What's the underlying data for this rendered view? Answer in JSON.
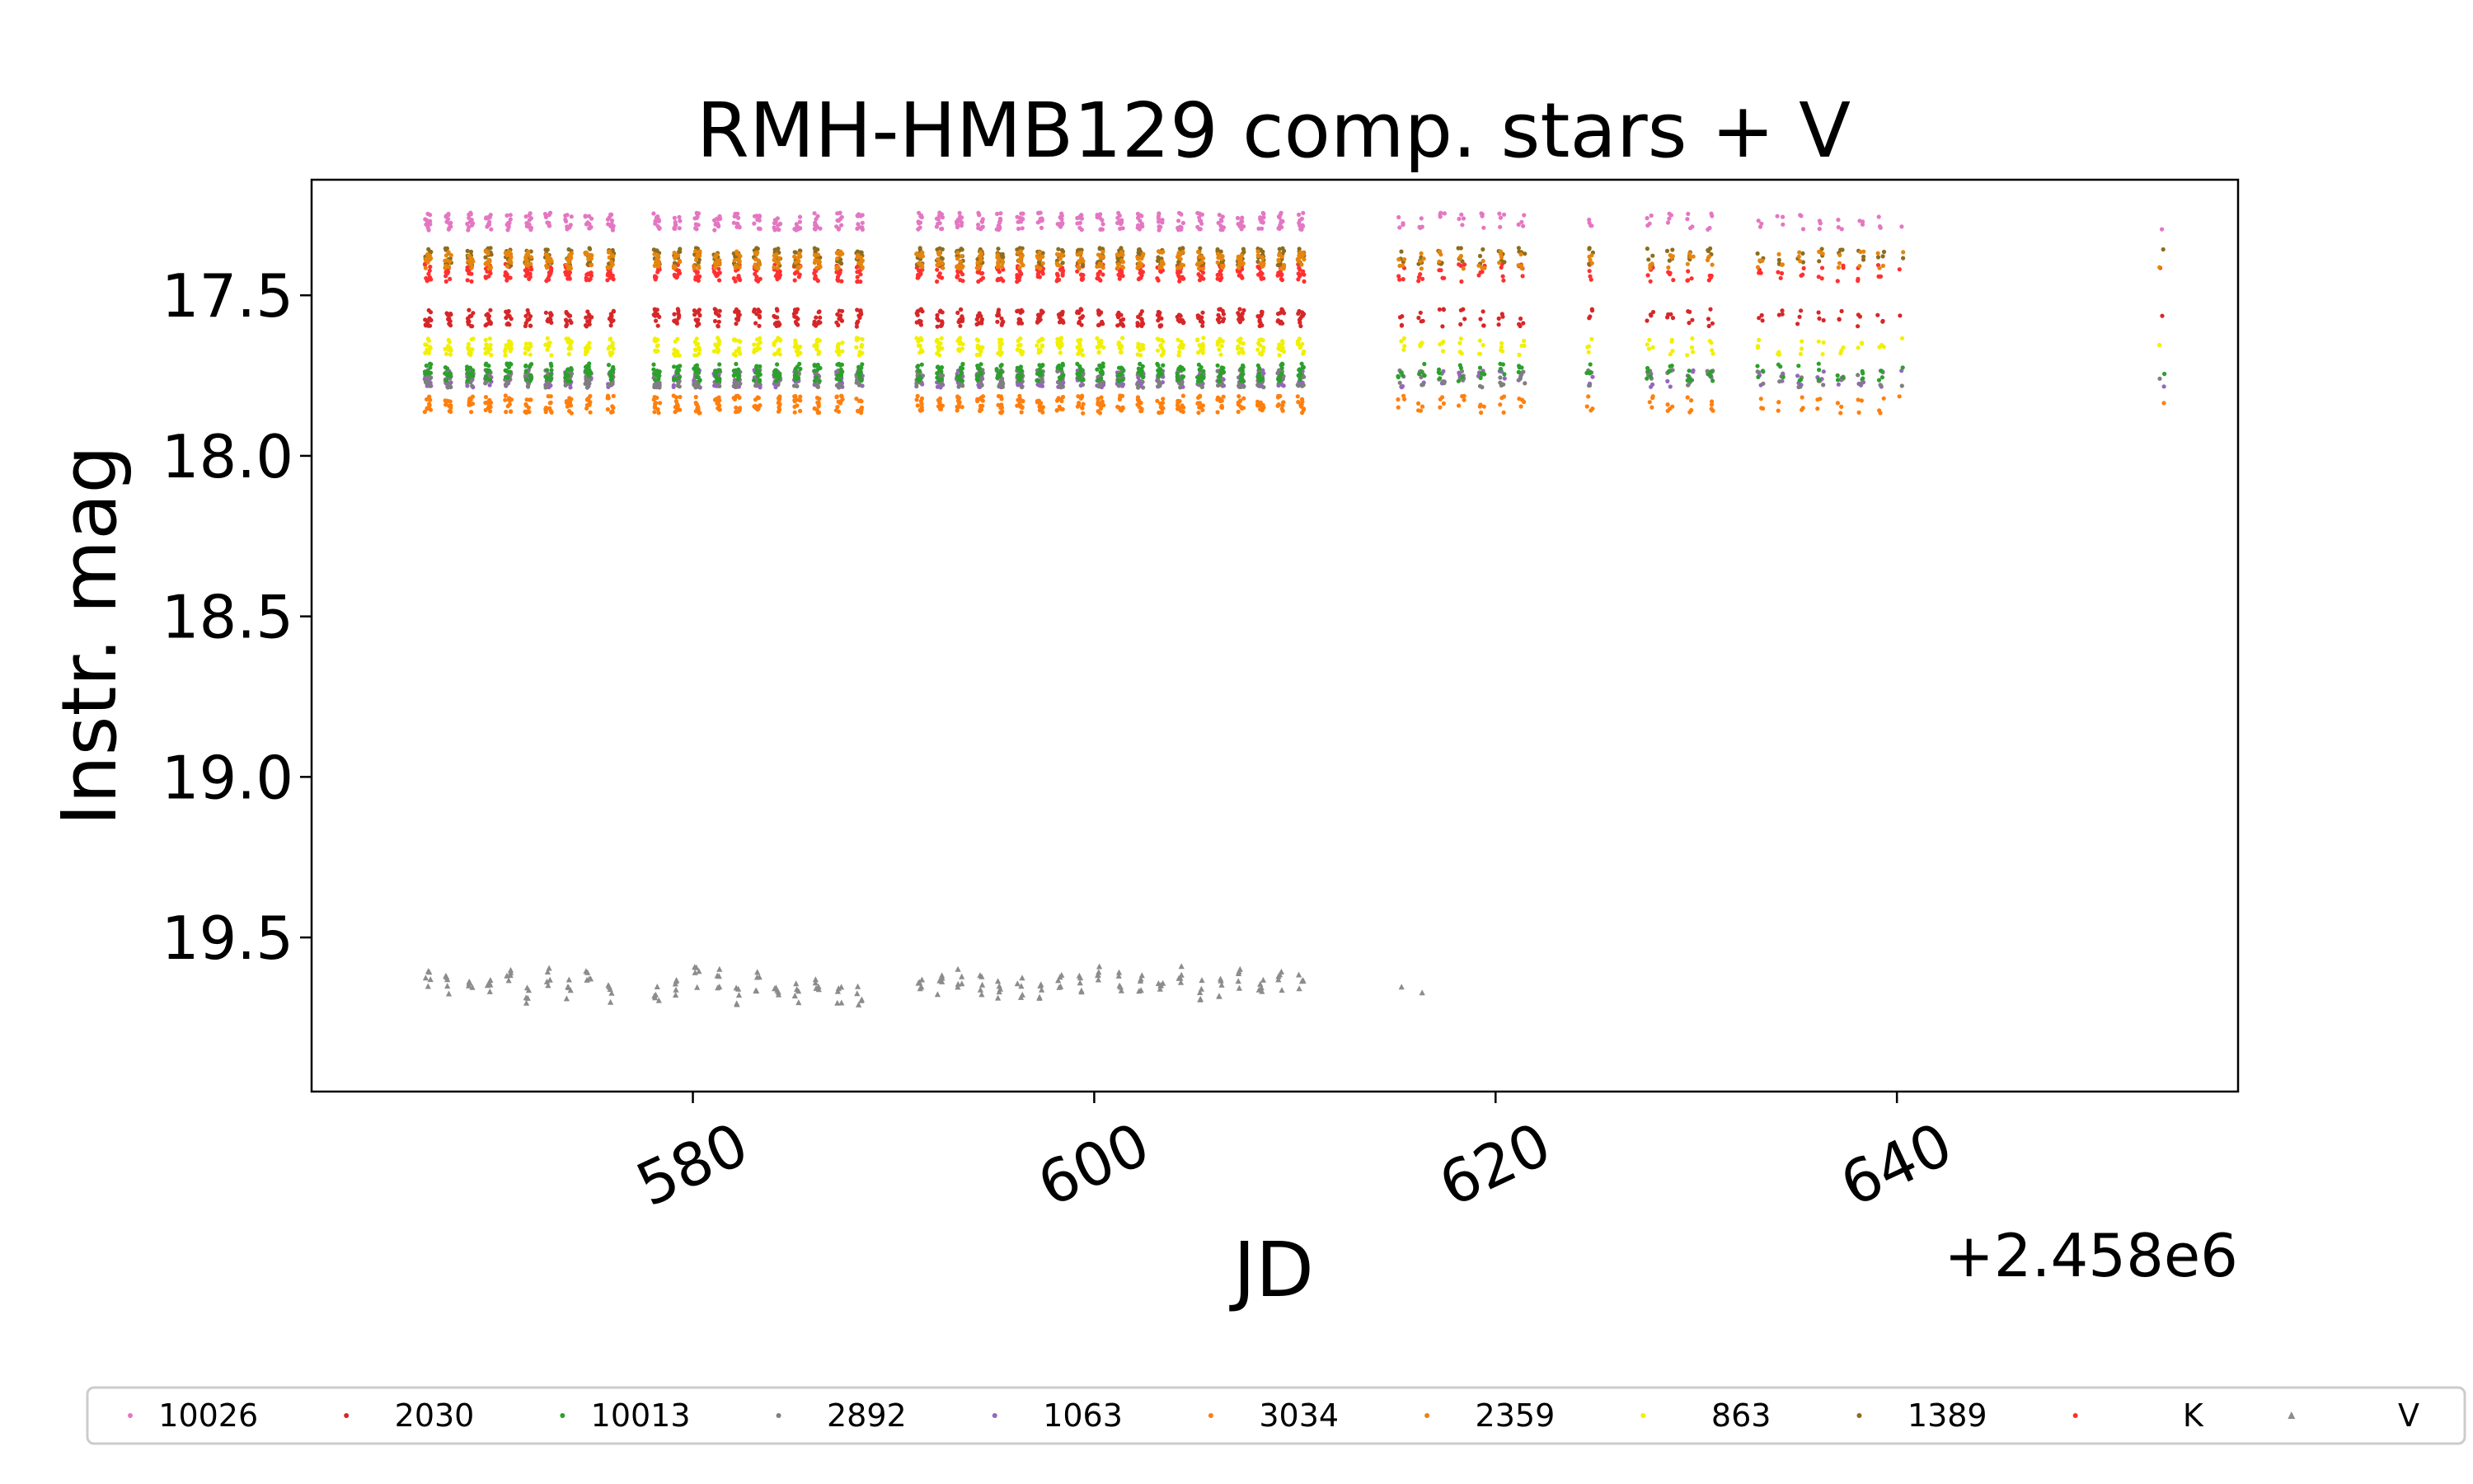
{
  "chart_data": {
    "type": "scatter",
    "title": "RMH-HMB129 comp. stars + V",
    "xlabel": "JD",
    "ylabel": "Instr. mag",
    "x_offset_label": "+2.458e6",
    "xlim": [
      561.0,
      657.0
    ],
    "ylim": [
      19.98,
      17.14
    ],
    "y_inverted": true,
    "xticks": [
      580,
      600,
      620,
      640
    ],
    "xtick_labels": [
      "580",
      "600",
      "620",
      "640"
    ],
    "yticks": [
      17.5,
      18.0,
      18.5,
      19.0,
      19.5
    ],
    "ytick_labels": [
      "17.5",
      "18.0",
      "18.5",
      "19.0",
      "19.5"
    ],
    "grid": false,
    "legend_position": "bottom",
    "observation_nights_jd": [
      566.8,
      567.8,
      568.9,
      569.8,
      570.8,
      571.8,
      572.8,
      573.8,
      574.8,
      575.9,
      578.2,
      579.2,
      580.2,
      581.2,
      582.2,
      583.2,
      584.2,
      585.2,
      586.2,
      587.3,
      588.3,
      591.3,
      592.3,
      593.3,
      594.3,
      595.3,
      596.3,
      597.3,
      598.3,
      599.3,
      600.3,
      601.3,
      602.3,
      603.3,
      604.3,
      605.3,
      606.3,
      607.3,
      608.3,
      609.3,
      610.3,
      615.3,
      616.3,
      617.3,
      618.3,
      619.3,
      620.3,
      621.3,
      624.7,
      627.7,
      628.7,
      629.7,
      630.7,
      633.2,
      634.2,
      635.2,
      636.2,
      637.2,
      638.2,
      639.2,
      640.2,
      653.2
    ],
    "series": [
      {
        "name": "10026",
        "color": "#e377c2",
        "mean_mag": 17.27,
        "marker": "dot"
      },
      {
        "name": "2030",
        "color": "#d62728",
        "mean_mag": 17.57,
        "marker": "dot"
      },
      {
        "name": "10013",
        "color": "#2ca02c",
        "mean_mag": 17.74,
        "marker": "dot"
      },
      {
        "name": "2892",
        "color": "#7f7f7f",
        "mean_mag": 17.76,
        "marker": "dot"
      },
      {
        "name": "1063",
        "color": "#9467bd",
        "mean_mag": 17.76,
        "marker": "dot"
      },
      {
        "name": "3034",
        "color": "#ff7f0e",
        "mean_mag": 17.84,
        "marker": "dot"
      },
      {
        "name": "2359",
        "color": "#e6850e",
        "mean_mag": 17.39,
        "marker": "dot"
      },
      {
        "name": "863",
        "color": "#f0f000",
        "mean_mag": 17.66,
        "marker": "dot"
      },
      {
        "name": "1389",
        "color": "#8c6d1f",
        "mean_mag": 17.38,
        "marker": "dot"
      },
      {
        "name": "K",
        "color": "#ff3030",
        "mean_mag": 17.43,
        "marker": "dot"
      },
      {
        "name": "V",
        "color": "#8c8c8c",
        "mean_mag": 19.65,
        "marker": "triangle"
      }
    ]
  }
}
